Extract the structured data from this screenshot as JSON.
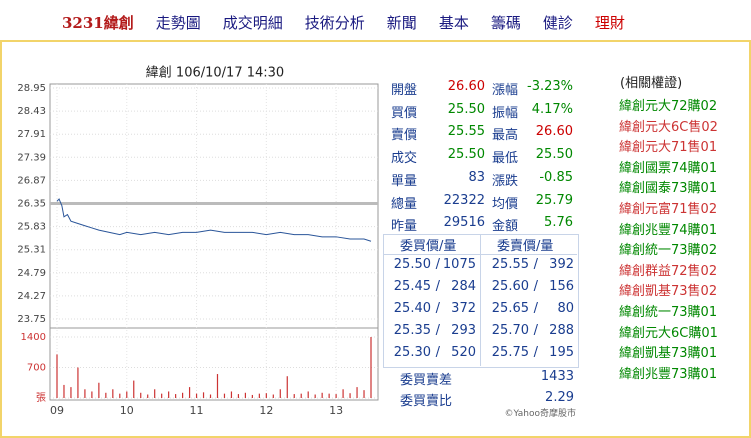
{
  "nav": {
    "items": [
      "3231緯創",
      "走勢圖",
      "成交明細",
      "技術分析",
      "新聞",
      "基本",
      "籌碼",
      "健診",
      "理財"
    ]
  },
  "chart_data": {
    "type": "line",
    "title": "緯創 106/10/17 14:30",
    "xlim": [
      9,
      13.5
    ],
    "xticks": [
      {
        "value": 9,
        "label": "09"
      },
      10,
      11,
      12,
      13
    ],
    "ylim": [
      23.75,
      28.95
    ],
    "yticks": [
      28.95,
      28.43,
      27.91,
      27.39,
      26.87,
      26.35,
      25.83,
      25.31,
      24.79,
      24.27,
      23.75
    ],
    "y2lim": [
      0,
      1400
    ],
    "y2ticks": [
      1400,
      700,
      {
        "value": 0,
        "label": "張"
      }
    ],
    "grid": true,
    "reference": 26.35,
    "reference_color": "#bbbbbb",
    "series": [
      {
        "type": "line",
        "color": "#2a5599",
        "x": [
          9.0,
          9.03,
          9.07,
          9.1,
          9.15,
          9.2,
          9.3,
          9.4,
          9.5,
          9.6,
          9.75,
          9.9,
          10.0,
          10.2,
          10.4,
          10.6,
          10.8,
          11.0,
          11.2,
          11.4,
          11.6,
          11.8,
          12.0,
          12.2,
          12.4,
          12.6,
          12.8,
          13.0,
          13.2,
          13.4,
          13.5
        ],
        "values": [
          26.4,
          26.45,
          26.3,
          26.05,
          26.1,
          25.95,
          25.9,
          25.85,
          25.8,
          25.75,
          25.7,
          25.65,
          25.7,
          25.65,
          25.7,
          25.65,
          25.7,
          25.7,
          25.75,
          25.7,
          25.7,
          25.7,
          25.65,
          25.7,
          25.65,
          25.65,
          25.6,
          25.6,
          25.55,
          25.55,
          25.5
        ]
      },
      {
        "type": "bar",
        "axis": "y2",
        "color": "#cc3333",
        "x": [
          9.0,
          9.1,
          9.2,
          9.3,
          9.4,
          9.5,
          9.6,
          9.7,
          9.8,
          9.9,
          10.0,
          10.1,
          10.2,
          10.3,
          10.4,
          10.5,
          10.6,
          10.7,
          10.8,
          10.9,
          11.0,
          11.1,
          11.2,
          11.3,
          11.4,
          11.5,
          11.6,
          11.7,
          11.8,
          11.9,
          12.0,
          12.1,
          12.2,
          12.3,
          12.4,
          12.5,
          12.6,
          12.7,
          12.8,
          12.9,
          13.0,
          13.1,
          13.2,
          13.3,
          13.4,
          13.5
        ],
        "values": [
          1000,
          300,
          250,
          700,
          200,
          150,
          350,
          120,
          200,
          100,
          150,
          400,
          120,
          80,
          200,
          100,
          150,
          90,
          120,
          250,
          100,
          130,
          80,
          550,
          100,
          150,
          90,
          120,
          70,
          100,
          110,
          80,
          200,
          500,
          90,
          100,
          150,
          80,
          120,
          100,
          90,
          200,
          110,
          250,
          180,
          1400
        ]
      }
    ]
  },
  "quote": {
    "rows": [
      [
        {
          "label": "開盤",
          "value": "26.60",
          "color": "#cc0000"
        },
        {
          "label": "漲幅",
          "value": "-3.23%",
          "color": "#008800"
        }
      ],
      [
        {
          "label": "買價",
          "value": "25.50",
          "color": "#008800"
        },
        {
          "label": "振幅",
          "value": "4.17%",
          "color": "#008800"
        }
      ],
      [
        {
          "label": "賣價",
          "value": "25.55",
          "color": "#008800"
        },
        {
          "label": "最高",
          "value": "26.60",
          "color": "#cc0000"
        }
      ],
      [
        {
          "label": "成交",
          "value": "25.50",
          "color": "#008800"
        },
        {
          "label": "最低",
          "value": "25.50",
          "color": "#008800"
        }
      ],
      [
        {
          "label": "單量",
          "value": "83",
          "color": "#1a3d8f"
        },
        {
          "label": "漲跌",
          "value": "-0.85",
          "color": "#008800"
        }
      ],
      [
        {
          "label": "總量",
          "value": "22322",
          "color": "#1a3d8f"
        },
        {
          "label": "均價",
          "value": "25.79",
          "color": "#008800"
        }
      ],
      [
        {
          "label": "昨量",
          "value": "29516",
          "color": "#1a3d8f"
        },
        {
          "label": "金額",
          "value": "5.76",
          "color": "#008800"
        }
      ]
    ]
  },
  "orderbook": {
    "headers": [
      "委買價/量",
      "委賣價/量"
    ],
    "bids": [
      {
        "price": "25.50",
        "volume": "1075"
      },
      {
        "price": "25.45",
        "volume": "284"
      },
      {
        "price": "25.40",
        "volume": "372"
      },
      {
        "price": "25.35",
        "volume": "293"
      },
      {
        "price": "25.30",
        "volume": "520"
      }
    ],
    "asks": [
      {
        "price": "25.55",
        "volume": "392"
      },
      {
        "price": "25.60",
        "volume": "156"
      },
      {
        "price": "25.65",
        "volume": "80"
      },
      {
        "price": "25.70",
        "volume": "288"
      },
      {
        "price": "25.75",
        "volume": "195"
      }
    ],
    "summary": [
      {
        "label": "委買賣差",
        "value": "1433"
      },
      {
        "label": "委買賣比",
        "value": "2.29"
      }
    ],
    "credit": "©Yahoo奇摩股市"
  },
  "warrants": {
    "title": "(相關權證)",
    "items": [
      {
        "name": "緯創元大72購02",
        "color": "#008800"
      },
      {
        "name": "緯創元大6C售02",
        "color": "#cc3333"
      },
      {
        "name": "緯創元大71售01",
        "color": "#cc3333"
      },
      {
        "name": "緯創國票74購01",
        "color": "#008800"
      },
      {
        "name": "緯創國泰73購01",
        "color": "#008800"
      },
      {
        "name": "緯創元富71售02",
        "color": "#cc3333"
      },
      {
        "name": "緯創兆豐74購01",
        "color": "#008800"
      },
      {
        "name": "緯創統一73購02",
        "color": "#008800"
      },
      {
        "name": "緯創群益72售02",
        "color": "#cc3333"
      },
      {
        "name": "緯創凱基73售02",
        "color": "#cc3333"
      },
      {
        "name": "緯創統一73購01",
        "color": "#008800"
      },
      {
        "name": "緯創元大6C購01",
        "color": "#008800"
      },
      {
        "name": "緯創凱基73購01",
        "color": "#008800"
      },
      {
        "name": "緯創兆豐73購01",
        "color": "#008800"
      }
    ]
  }
}
